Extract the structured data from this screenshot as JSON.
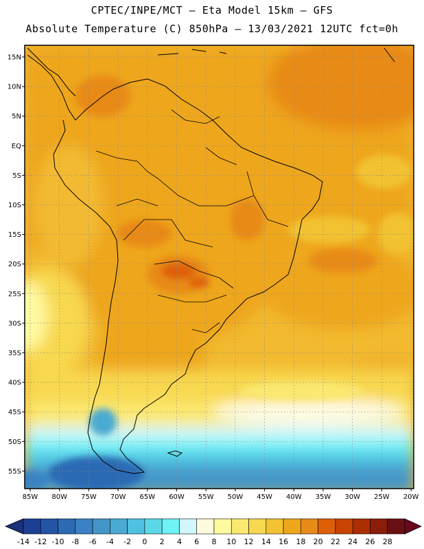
{
  "header": {
    "line1": "CPTEC/INPE/MCT –  Eta Model 15km – GFS",
    "line2": "Absolute Temperature (C) 850hPa – 13/03/2021 12UTC fct=0h"
  },
  "map": {
    "lat_labels": [
      "15N",
      "10N",
      "5N",
      "EQ",
      "5S",
      "10S",
      "15S",
      "20S",
      "25S",
      "30S",
      "35S",
      "40S",
      "45S",
      "50S",
      "55S"
    ],
    "lon_labels": [
      "85W",
      "80W",
      "75W",
      "70W",
      "65W",
      "60W",
      "55W",
      "50W",
      "45W",
      "40W",
      "35W",
      "30W",
      "25W",
      "20W"
    ],
    "gridlines": true
  },
  "colorbar": {
    "levels": [
      "-14",
      "-12",
      "-10",
      "-8",
      "-6",
      "-4",
      "-2",
      "0",
      "2",
      "4",
      "6",
      "8",
      "10",
      "12",
      "14",
      "16",
      "18",
      "20",
      "22",
      "24",
      "26",
      "28"
    ],
    "colors": [
      "#1c3f94",
      "#2454a4",
      "#2c6ab4",
      "#3b82c4",
      "#4596c8",
      "#4aaad2",
      "#50c0e0",
      "#5ad8e8",
      "#6ef2f6",
      "#d2f6fa",
      "#fefae0",
      "#fefaa0",
      "#fbe870",
      "#f8d850",
      "#f2c232",
      "#eea61a",
      "#e88a18",
      "#de5e08",
      "#c84404",
      "#ac2e04",
      "#8a1e0a",
      "#6a1014"
    ],
    "arrow_left_color": "#1c2f7a",
    "arrow_right_color": "#6a0a1e"
  }
}
